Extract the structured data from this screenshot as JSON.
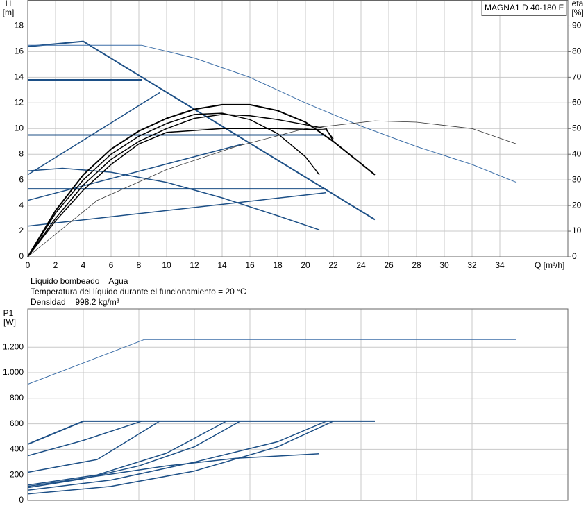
{
  "chart_data": [
    {
      "type": "line",
      "title": "MAGNA1 D 40-180 F",
      "ylabel": "H",
      "yunit": "[m]",
      "y2label": "eta",
      "y2unit": "[%]",
      "xlabel": "Q [m³/h]",
      "notes": [
        "Líquido bombeado = Agua",
        "Temperatura del líquido durante el funcionamiento = 20 °C",
        "Densidad = 998.2 kg/m³"
      ],
      "xlim": [
        0,
        38.9
      ],
      "ylim": [
        0,
        20
      ],
      "y2lim": [
        0,
        100
      ],
      "grid": true,
      "xticks": [
        0,
        2,
        4,
        6,
        8,
        10,
        12,
        14,
        16,
        18,
        20,
        22,
        24,
        26,
        28,
        30,
        32,
        34
      ],
      "yticks": [
        0,
        2,
        4,
        6,
        8,
        10,
        12,
        14,
        16,
        18
      ],
      "y2ticks": [
        0,
        10,
        20,
        30,
        40,
        50,
        60,
        70,
        80,
        90
      ],
      "series": [
        {
          "color": "#1c4f86",
          "width": 2,
          "x": [
            0,
            4,
            25
          ],
          "values": [
            16.4,
            16.8,
            2.9
          ]
        },
        {
          "color": "#3d6fa8",
          "width": 1,
          "x": [
            0,
            8.2,
            12,
            16,
            20,
            24,
            28,
            32,
            35.2
          ],
          "values": [
            16.5,
            16.5,
            15.5,
            14,
            12,
            10.2,
            8.6,
            7.2,
            5.8
          ]
        },
        {
          "color": "#1c4f86",
          "width": 2,
          "x": [
            0,
            8.2
          ],
          "values": [
            13.8,
            13.8
          ]
        },
        {
          "color": "#1c4f86",
          "width": 2,
          "x": [
            0,
            21.5
          ],
          "values": [
            9.5,
            9.5
          ]
        },
        {
          "color": "#1c4f86",
          "width": 2,
          "x": [
            0,
            21.5
          ],
          "values": [
            5.3,
            5.3
          ]
        },
        {
          "color": "#1c4f86",
          "width": 1.5,
          "x": [
            0,
            9.5
          ],
          "values": [
            6.4,
            12.8
          ]
        },
        {
          "color": "#1c4f86",
          "width": 1.5,
          "x": [
            0,
            15.5
          ],
          "values": [
            4.4,
            8.8
          ]
        },
        {
          "color": "#1c4f86",
          "width": 1.5,
          "x": [
            0,
            21.5
          ],
          "values": [
            2.4,
            5.0
          ]
        },
        {
          "color": "#1c4f86",
          "width": 1.5,
          "x": [
            0,
            2.5,
            6,
            10,
            14,
            18,
            21
          ],
          "values": [
            6.7,
            6.9,
            6.6,
            5.8,
            4.6,
            3.2,
            2.1
          ]
        },
        {
          "color": "#000000",
          "width": 2,
          "axis": "y2",
          "x": [
            0,
            2,
            4,
            6,
            8,
            10,
            12,
            14,
            16,
            18,
            20,
            22,
            25
          ],
          "values": [
            0,
            18,
            32,
            42,
            49,
            54,
            57.5,
            59.3,
            59.3,
            57,
            52.5,
            45,
            32
          ]
        },
        {
          "color": "#000000",
          "width": 1.5,
          "axis": "y2",
          "x": [
            0,
            2,
            4,
            6,
            8,
            10,
            12,
            14,
            16,
            18,
            20,
            21
          ],
          "values": [
            0,
            17,
            30,
            40,
            47,
            52,
            55.5,
            56,
            53.5,
            48,
            39,
            32
          ]
        },
        {
          "color": "#000000",
          "width": 1.5,
          "axis": "y2",
          "x": [
            0,
            2,
            4,
            6,
            8,
            10,
            12,
            14,
            16,
            18,
            20,
            21.5,
            22
          ],
          "values": [
            0,
            15,
            28,
            38,
            45,
            50,
            54,
            55.5,
            55,
            53.5,
            51.5,
            50,
            45
          ]
        },
        {
          "color": "#000000",
          "width": 1.5,
          "axis": "y2",
          "x": [
            0,
            2,
            4,
            6,
            8,
            10,
            14,
            18,
            21.5,
            22
          ],
          "values": [
            0,
            14,
            26,
            36,
            44,
            48.5,
            50,
            50,
            49.5,
            46
          ]
        },
        {
          "color": "#333333",
          "width": 0.8,
          "axis": "y2",
          "x": [
            0,
            5,
            10,
            15,
            20,
            25,
            28,
            32,
            35.2
          ],
          "values": [
            0,
            22,
            34,
            43,
            50,
            53,
            52.5,
            50,
            44
          ]
        }
      ]
    },
    {
      "type": "line",
      "ylabel": "P1",
      "yunit": "[W]",
      "xlim": [
        0,
        38.9
      ],
      "ylim": [
        0,
        1500
      ],
      "grid": true,
      "yticks": [
        0,
        200,
        400,
        600,
        800,
        {
          "value": 1000,
          "label": "1.000"
        },
        {
          "value": 1200,
          "label": "1.200"
        }
      ],
      "series": [
        {
          "color": "#3d6fa8",
          "width": 1,
          "x": [
            0,
            8.4,
            35.2
          ],
          "values": [
            910,
            1260,
            1260
          ]
        },
        {
          "color": "#1c4f86",
          "width": 2,
          "x": [
            0,
            4,
            25
          ],
          "values": [
            440,
            620,
            620
          ]
        },
        {
          "color": "#1c4f86",
          "width": 1.5,
          "x": [
            0,
            4,
            8.2
          ],
          "values": [
            350,
            470,
            620
          ]
        },
        {
          "color": "#1c4f86",
          "width": 1.5,
          "x": [
            0,
            5,
            9.5
          ],
          "values": [
            220,
            320,
            620
          ]
        },
        {
          "color": "#1c4f86",
          "width": 1.5,
          "x": [
            0,
            5,
            10,
            14.3
          ],
          "values": [
            120,
            200,
            370,
            620
          ]
        },
        {
          "color": "#1c4f86",
          "width": 1.5,
          "x": [
            0,
            4,
            8,
            12,
            15.3
          ],
          "values": [
            100,
            170,
            270,
            420,
            620
          ]
        },
        {
          "color": "#1c4f86",
          "width": 1.5,
          "x": [
            0,
            6,
            12,
            18,
            21.5
          ],
          "values": [
            80,
            160,
            300,
            460,
            620
          ]
        },
        {
          "color": "#1c4f86",
          "width": 1.5,
          "x": [
            0,
            6,
            12,
            18,
            22
          ],
          "values": [
            50,
            110,
            230,
            420,
            620
          ]
        },
        {
          "color": "#1c4f86",
          "width": 1.5,
          "x": [
            0,
            5,
            10,
            15,
            21
          ],
          "values": [
            110,
            190,
            270,
            330,
            365
          ]
        }
      ]
    }
  ]
}
